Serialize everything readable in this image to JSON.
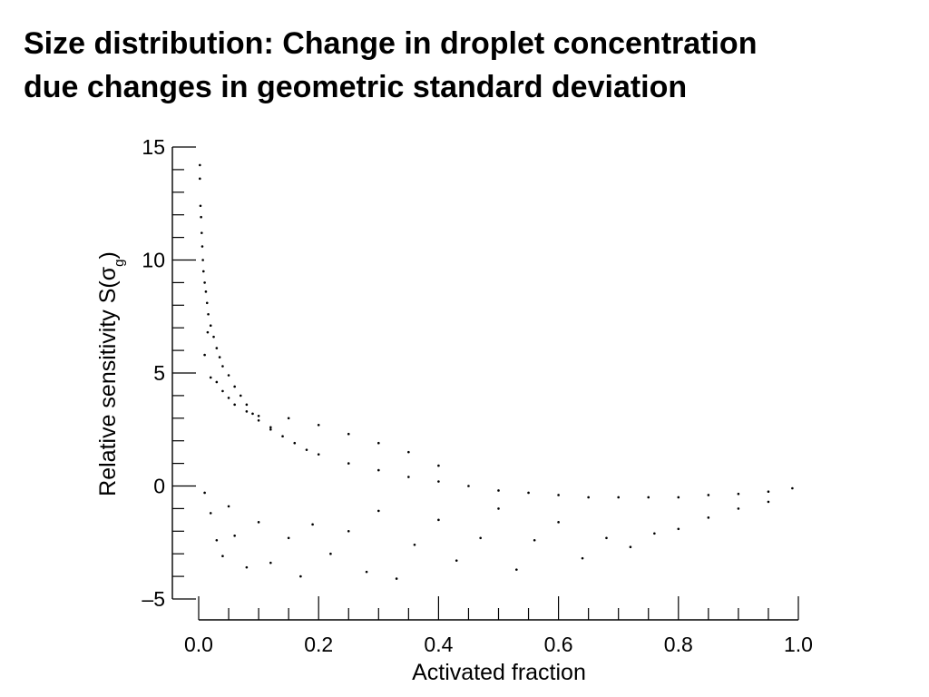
{
  "title": {
    "line1": "Size distribution: Change in droplet concentration",
    "line2": "due changes in geometric standard deviation"
  },
  "chart_data": {
    "type": "scatter",
    "xlabel": "Activated fraction",
    "ylabel": "Relative sensitivity S(σg)",
    "ylabel_parts": {
      "main": "Relative sensitivity S(σ",
      "sub": "g",
      "close": ")"
    },
    "xlim": [
      0.0,
      1.0
    ],
    "ylim": [
      -5,
      15
    ],
    "xticks": [
      0.0,
      0.2,
      0.4,
      0.6,
      0.8,
      1.0
    ],
    "xtick_labels": [
      "0.0",
      "0.2",
      "0.4",
      "0.6",
      "0.8",
      "1.0"
    ],
    "yticks": [
      -5,
      0,
      5,
      10,
      15
    ],
    "ytick_labels": [
      "–5",
      "0",
      "5",
      "10",
      "15"
    ],
    "grid": false,
    "legend": "none",
    "marker_color": "#000000",
    "series": [
      {
        "values": [
          [
            0.002,
            14.2
          ],
          [
            0.002,
            13.6
          ],
          [
            0.003,
            12.4
          ],
          [
            0.004,
            11.9
          ],
          [
            0.005,
            11.2
          ],
          [
            0.006,
            10.6
          ],
          [
            0.007,
            10.0
          ],
          [
            0.008,
            9.5
          ],
          [
            0.01,
            9.0
          ],
          [
            0.012,
            8.6
          ],
          [
            0.014,
            8.1
          ],
          [
            0.016,
            7.6
          ],
          [
            0.02,
            7.1
          ],
          [
            0.025,
            6.6
          ],
          [
            0.03,
            6.1
          ],
          [
            0.035,
            5.7
          ],
          [
            0.04,
            5.3
          ],
          [
            0.05,
            4.9
          ],
          [
            0.06,
            4.4
          ],
          [
            0.07,
            4.0
          ],
          [
            0.08,
            3.6
          ],
          [
            0.09,
            3.2
          ],
          [
            0.1,
            2.9
          ],
          [
            0.12,
            2.5
          ],
          [
            0.14,
            2.2
          ],
          [
            0.16,
            1.9
          ],
          [
            0.18,
            1.6
          ],
          [
            0.2,
            1.4
          ],
          [
            0.25,
            1.0
          ],
          [
            0.3,
            0.7
          ],
          [
            0.35,
            0.4
          ],
          [
            0.4,
            0.2
          ],
          [
            0.45,
            0.0
          ],
          [
            0.5,
            -0.2
          ],
          [
            0.55,
            -0.3
          ],
          [
            0.6,
            -0.4
          ],
          [
            0.65,
            -0.5
          ],
          [
            0.7,
            -0.5
          ],
          [
            0.75,
            -0.5
          ],
          [
            0.8,
            -0.5
          ],
          [
            0.85,
            -0.4
          ],
          [
            0.9,
            -0.35
          ],
          [
            0.95,
            -0.25
          ],
          [
            0.99,
            -0.1
          ],
          [
            0.01,
            5.8
          ],
          [
            0.015,
            6.8
          ],
          [
            0.02,
            4.8
          ],
          [
            0.03,
            4.6
          ],
          [
            0.04,
            4.2
          ],
          [
            0.05,
            3.9
          ],
          [
            0.06,
            3.6
          ],
          [
            0.08,
            3.3
          ],
          [
            0.1,
            3.1
          ],
          [
            0.12,
            2.6
          ],
          [
            0.15,
            3.0
          ],
          [
            0.2,
            2.7
          ],
          [
            0.25,
            2.3
          ],
          [
            0.3,
            1.9
          ],
          [
            0.35,
            1.5
          ],
          [
            0.4,
            0.9
          ],
          [
            0.01,
            -0.3
          ],
          [
            0.02,
            -1.2
          ],
          [
            0.03,
            -2.4
          ],
          [
            0.04,
            -3.1
          ],
          [
            0.05,
            -0.9
          ],
          [
            0.06,
            -2.2
          ],
          [
            0.08,
            -3.6
          ],
          [
            0.1,
            -1.6
          ],
          [
            0.12,
            -3.4
          ],
          [
            0.15,
            -2.3
          ],
          [
            0.17,
            -4.0
          ],
          [
            0.19,
            -1.7
          ],
          [
            0.22,
            -3.0
          ],
          [
            0.25,
            -2.0
          ],
          [
            0.28,
            -3.8
          ],
          [
            0.3,
            -1.1
          ],
          [
            0.33,
            -4.1
          ],
          [
            0.36,
            -2.6
          ],
          [
            0.4,
            -1.5
          ],
          [
            0.43,
            -3.3
          ],
          [
            0.47,
            -2.3
          ],
          [
            0.5,
            -1.0
          ],
          [
            0.53,
            -3.7
          ],
          [
            0.56,
            -2.4
          ],
          [
            0.6,
            -1.6
          ],
          [
            0.64,
            -3.2
          ],
          [
            0.68,
            -2.3
          ],
          [
            0.72,
            -2.7
          ],
          [
            0.76,
            -2.1
          ],
          [
            0.8,
            -1.9
          ],
          [
            0.85,
            -1.4
          ],
          [
            0.9,
            -1.0
          ],
          [
            0.95,
            -0.7
          ]
        ]
      }
    ]
  }
}
